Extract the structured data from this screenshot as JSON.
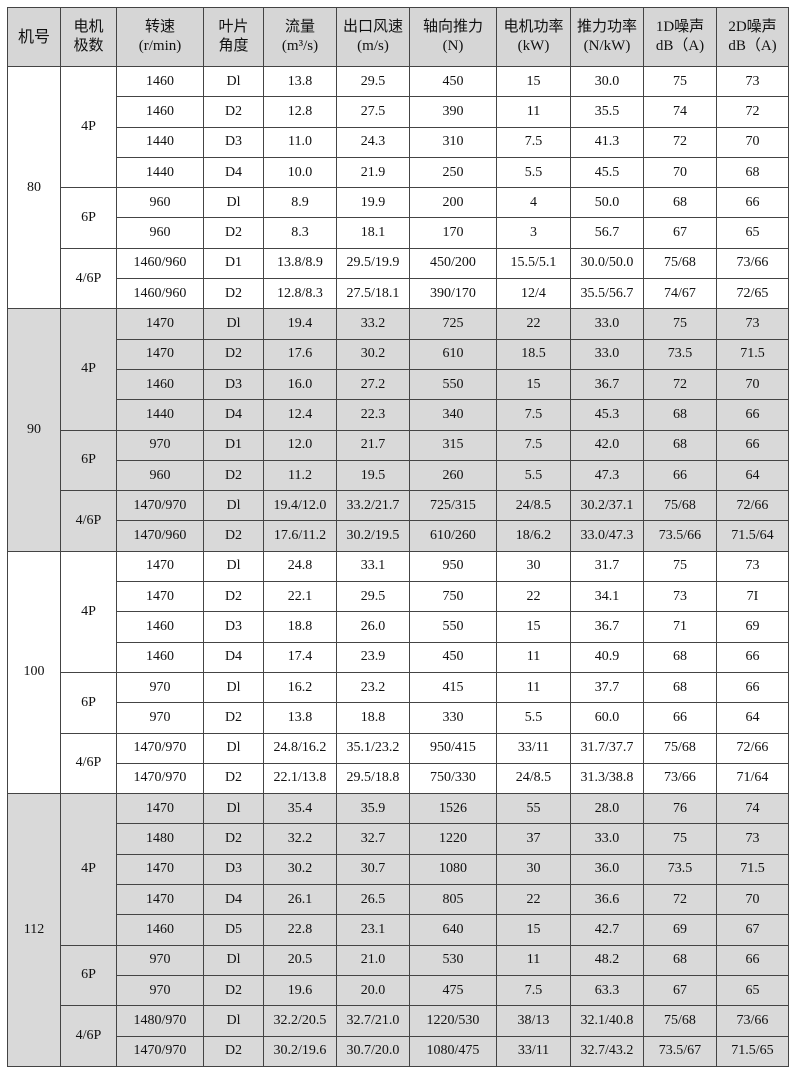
{
  "headers": [
    {
      "l1": "机号",
      "l2": ""
    },
    {
      "l1": "电机",
      "l2": "极数"
    },
    {
      "l1": "转速",
      "l2": "(r/min)"
    },
    {
      "l1": "叶片",
      "l2": "角度"
    },
    {
      "l1": "流量",
      "l2": "(m³/s)"
    },
    {
      "l1": "出口风速",
      "l2": "(m/s)"
    },
    {
      "l1": "轴向推力",
      "l2": "(N)"
    },
    {
      "l1": "电机功率",
      "l2": "(kW)"
    },
    {
      "l1": "推力功率",
      "l2": "(N/kW)"
    },
    {
      "l1": "1D噪声",
      "l2": "dB（A)"
    },
    {
      "l1": "2D噪声",
      "l2": "dB（A)"
    }
  ],
  "colors": {
    "header_bg": "#d6d6d6",
    "gray_group_bg": "#d9d9d9",
    "border": "#444444"
  },
  "groups": [
    {
      "model": "80",
      "shaded": false,
      "subgroups": [
        {
          "poles": "4P",
          "rows": [
            [
              "1460",
              "Dl",
              "13.8",
              "29.5",
              "450",
              "15",
              "30.0",
              "75",
              "73"
            ],
            [
              "1460",
              "D2",
              "12.8",
              "27.5",
              "390",
              "11",
              "35.5",
              "74",
              "72"
            ],
            [
              "1440",
              "D3",
              "11.0",
              "24.3",
              "310",
              "7.5",
              "41.3",
              "72",
              "70"
            ],
            [
              "1440",
              "D4",
              "10.0",
              "21.9",
              "250",
              "5.5",
              "45.5",
              "70",
              "68"
            ]
          ]
        },
        {
          "poles": "6P",
          "rows": [
            [
              "960",
              "Dl",
              "8.9",
              "19.9",
              "200",
              "4",
              "50.0",
              "68",
              "66"
            ],
            [
              "960",
              "D2",
              "8.3",
              "18.1",
              "170",
              "3",
              "56.7",
              "67",
              "65"
            ]
          ]
        },
        {
          "poles": "4/6P",
          "rows": [
            [
              "1460/960",
              "D1",
              "13.8/8.9",
              "29.5/19.9",
              "450/200",
              "15.5/5.1",
              "30.0/50.0",
              "75/68",
              "73/66"
            ],
            [
              "1460/960",
              "D2",
              "12.8/8.3",
              "27.5/18.1",
              "390/170",
              "12/4",
              "35.5/56.7",
              "74/67",
              "72/65"
            ]
          ]
        }
      ]
    },
    {
      "model": "90",
      "shaded": true,
      "subgroups": [
        {
          "poles": "4P",
          "rows": [
            [
              "1470",
              "Dl",
              "19.4",
              "33.2",
              "725",
              "22",
              "33.0",
              "75",
              "73"
            ],
            [
              "1470",
              "D2",
              "17.6",
              "30.2",
              "610",
              "18.5",
              "33.0",
              "73.5",
              "71.5"
            ],
            [
              "1460",
              "D3",
              "16.0",
              "27.2",
              "550",
              "15",
              "36.7",
              "72",
              "70"
            ],
            [
              "1440",
              "D4",
              "12.4",
              "22.3",
              "340",
              "7.5",
              "45.3",
              "68",
              "66"
            ]
          ]
        },
        {
          "poles": "6P",
          "rows": [
            [
              "970",
              "D1",
              "12.0",
              "21.7",
              "315",
              "7.5",
              "42.0",
              "68",
              "66"
            ],
            [
              "960",
              "D2",
              "11.2",
              "19.5",
              "260",
              "5.5",
              "47.3",
              "66",
              "64"
            ]
          ]
        },
        {
          "poles": "4/6P",
          "rows": [
            [
              "1470/970",
              "Dl",
              "19.4/12.0",
              "33.2/21.7",
              "725/315",
              "24/8.5",
              "30.2/37.1",
              "75/68",
              "72/66"
            ],
            [
              "1470/960",
              "D2",
              "17.6/11.2",
              "30.2/19.5",
              "610/260",
              "18/6.2",
              "33.0/47.3",
              "73.5/66",
              "71.5/64"
            ]
          ]
        }
      ]
    },
    {
      "model": "100",
      "shaded": false,
      "subgroups": [
        {
          "poles": "4P",
          "rows": [
            [
              "1470",
              "Dl",
              "24.8",
              "33.1",
              "950",
              "30",
              "31.7",
              "75",
              "73"
            ],
            [
              "1470",
              "D2",
              "22.1",
              "29.5",
              "750",
              "22",
              "34.1",
              "73",
              "7I"
            ],
            [
              "1460",
              "D3",
              "18.8",
              "26.0",
              "550",
              "15",
              "36.7",
              "71",
              "69"
            ],
            [
              "1460",
              "D4",
              "17.4",
              "23.9",
              "450",
              "11",
              "40.9",
              "68",
              "66"
            ]
          ]
        },
        {
          "poles": "6P",
          "rows": [
            [
              "970",
              "Dl",
              "16.2",
              "23.2",
              "415",
              "11",
              "37.7",
              "68",
              "66"
            ],
            [
              "970",
              "D2",
              "13.8",
              "18.8",
              "330",
              "5.5",
              "60.0",
              "66",
              "64"
            ]
          ]
        },
        {
          "poles": "4/6P",
          "rows": [
            [
              "1470/970",
              "Dl",
              "24.8/16.2",
              "35.1/23.2",
              "950/415",
              "33/11",
              "31.7/37.7",
              "75/68",
              "72/66"
            ],
            [
              "1470/970",
              "D2",
              "22.1/13.8",
              "29.5/18.8",
              "750/330",
              "24/8.5",
              "31.3/38.8",
              "73/66",
              "71/64"
            ]
          ]
        }
      ]
    },
    {
      "model": "112",
      "shaded": true,
      "subgroups": [
        {
          "poles": "4P",
          "rows": [
            [
              "1470",
              "Dl",
              "35.4",
              "35.9",
              "1526",
              "55",
              "28.0",
              "76",
              "74"
            ],
            [
              "1480",
              "D2",
              "32.2",
              "32.7",
              "1220",
              "37",
              "33.0",
              "75",
              "73"
            ],
            [
              "1470",
              "D3",
              "30.2",
              "30.7",
              "1080",
              "30",
              "36.0",
              "73.5",
              "71.5"
            ],
            [
              "1470",
              "D4",
              "26.1",
              "26.5",
              "805",
              "22",
              "36.6",
              "72",
              "70"
            ],
            [
              "1460",
              "D5",
              "22.8",
              "23.1",
              "640",
              "15",
              "42.7",
              "69",
              "67"
            ]
          ]
        },
        {
          "poles": "6P",
          "rows": [
            [
              "970",
              "Dl",
              "20.5",
              "21.0",
              "530",
              "11",
              "48.2",
              "68",
              "66"
            ],
            [
              "970",
              "D2",
              "19.6",
              "20.0",
              "475",
              "7.5",
              "63.3",
              "67",
              "65"
            ]
          ]
        },
        {
          "poles": "4/6P",
          "rows": [
            [
              "1480/970",
              "Dl",
              "32.2/20.5",
              "32.7/21.0",
              "1220/530",
              "38/13",
              "32.1/40.8",
              "75/68",
              "73/66"
            ],
            [
              "1470/970",
              "D2",
              "30.2/19.6",
              "30.7/20.0",
              "1080/475",
              "33/11",
              "32.7/43.2",
              "73.5/67",
              "71.5/65"
            ]
          ]
        }
      ]
    }
  ]
}
